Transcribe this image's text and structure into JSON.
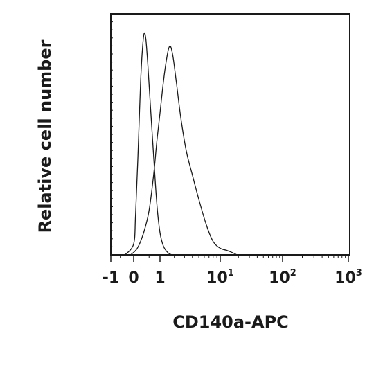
{
  "chart_data": {
    "type": "area",
    "xlabel": "CD140a-APC",
    "ylabel": "Relative cell number",
    "x_scale": "biexponential",
    "xlim": [
      -1,
      1000
    ],
    "ylim": [
      0,
      1
    ],
    "grid": false,
    "x_ticks": [
      {
        "value": -1,
        "label": "-1",
        "exp": ""
      },
      {
        "value": 0,
        "label": "0",
        "exp": ""
      },
      {
        "value": 1,
        "label": "1",
        "exp": ""
      },
      {
        "value": 10,
        "label": "10",
        "exp": "1"
      },
      {
        "value": 100,
        "label": "10",
        "exp": "2"
      },
      {
        "value": 1000,
        "label": "10",
        "exp": "3"
      }
    ],
    "series": [
      {
        "x": [
          -0.3,
          0,
          0.05,
          0.12,
          0.2,
          0.26,
          0.32,
          0.38,
          0.45,
          0.55,
          0.7,
          0.85,
          1.0,
          1.2,
          1.5,
          1.8
        ],
        "y": [
          0.0,
          0.05,
          0.18,
          0.45,
          0.78,
          0.93,
          1.0,
          0.97,
          0.86,
          0.68,
          0.43,
          0.22,
          0.1,
          0.04,
          0.01,
          0.0
        ]
      },
      {
        "x": [
          -0.1,
          0.1,
          0.3,
          0.5,
          0.7,
          0.85,
          1.0,
          1.2,
          1.4,
          1.55,
          1.7,
          1.9,
          2.2,
          2.6,
          3.2,
          4,
          5,
          6.5,
          8,
          10,
          13,
          16,
          19
        ],
        "y": [
          0.0,
          0.03,
          0.1,
          0.2,
          0.37,
          0.52,
          0.64,
          0.78,
          0.88,
          0.93,
          0.94,
          0.89,
          0.77,
          0.62,
          0.47,
          0.36,
          0.25,
          0.13,
          0.06,
          0.03,
          0.02,
          0.01,
          0.0
        ]
      }
    ]
  }
}
